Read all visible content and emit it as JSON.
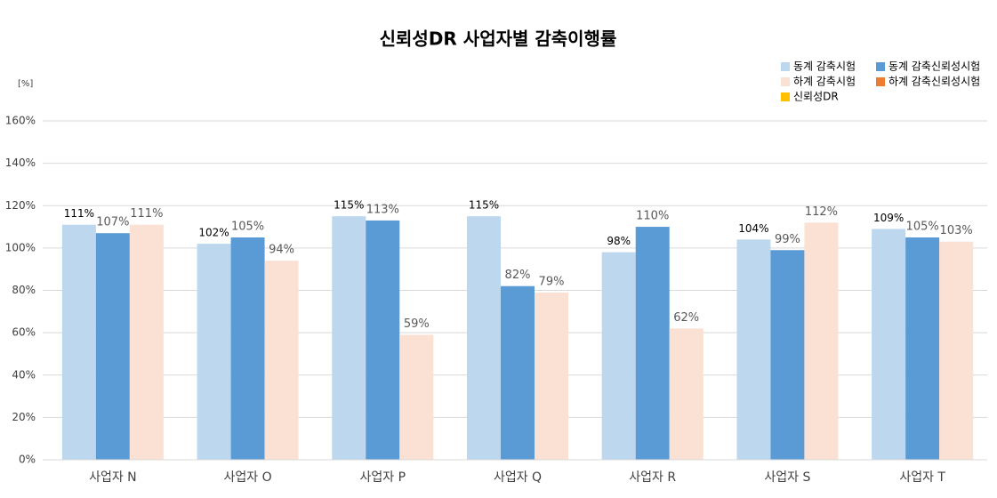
{
  "chart_data": {
    "type": "bar",
    "title": "신뢰성DR 사업자별 감축이행률",
    "y_unit": "[%]",
    "categories": [
      "사업자 N",
      "사업자 O",
      "사업자 P",
      "사업자 Q",
      "사업자 R",
      "사업자 S",
      "사업자 T"
    ],
    "series": [
      {
        "name": "동계 감축시험",
        "color": "#bdd7ee",
        "values": [
          111,
          102,
          115,
          115,
          98,
          104,
          109
        ],
        "value_labels": [
          "111%",
          "102%",
          "115%",
          "115%",
          "98%",
          "104%",
          "109%"
        ]
      },
      {
        "name": "동계 감축신뢰성시험",
        "color": "#5b9bd5",
        "values": [
          107,
          105,
          113,
          82,
          110,
          99,
          105
        ],
        "value_labels": [
          "107%",
          "105%",
          "113%",
          "82%",
          "110%",
          "99%",
          "105%"
        ]
      },
      {
        "name": "하계 감축시험",
        "color": "#fbe0d4",
        "values": [
          111,
          94,
          59,
          79,
          62,
          112,
          103
        ],
        "value_labels": [
          "111%",
          "94%",
          "59%",
          "79%",
          "62%",
          "112%",
          "103%"
        ]
      },
      {
        "name": "하계 감축신뢰성시험",
        "color": "#ed7d31",
        "values": [
          null,
          null,
          null,
          null,
          null,
          null,
          null
        ]
      },
      {
        "name": "신뢰성DR",
        "color": "#ffc000",
        "values": [
          null,
          null,
          null,
          null,
          null,
          null,
          null
        ]
      }
    ],
    "ylim": [
      0,
      160
    ],
    "yticks": [
      {
        "value": 0,
        "label": "0%"
      },
      {
        "value": 20,
        "label": "20%"
      },
      {
        "value": 40,
        "label": "40%"
      },
      {
        "value": 60,
        "label": "60%"
      },
      {
        "value": 80,
        "label": "80%"
      },
      {
        "value": 100,
        "label": "100%"
      },
      {
        "value": 120,
        "label": "120%"
      },
      {
        "value": 140,
        "label": "140%"
      },
      {
        "value": 160,
        "label": "160%"
      }
    ],
    "grid": true,
    "legend": "top-right"
  }
}
